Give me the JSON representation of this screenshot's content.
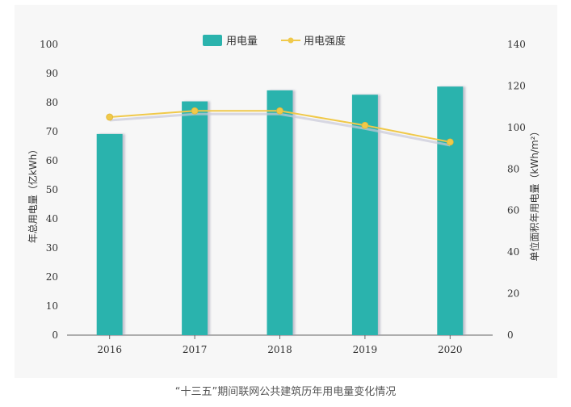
{
  "caption": "“十三五”期间联网公共建筑历年用电量变化情况",
  "colors": {
    "bar": "#2bb3ad",
    "line": "#f0c94a",
    "line_shadow": "#c9c9d9",
    "axis": "#666666"
  },
  "chart_data": {
    "type": "bar+line",
    "categories": [
      "2016",
      "2017",
      "2018",
      "2019",
      "2020"
    ],
    "series": [
      {
        "name": "用电量",
        "type": "bar",
        "axis": "left",
        "values": [
          69.2,
          80.4,
          84.2,
          82.7,
          85.5
        ]
      },
      {
        "name": "用电强度",
        "type": "line",
        "axis": "right",
        "values": [
          105,
          108,
          108,
          101,
          93
        ]
      }
    ],
    "y_left": {
      "label": "年总用电量（亿kWh）",
      "min": 0,
      "max": 100,
      "ticks": [
        0,
        10,
        20,
        30,
        40,
        50,
        60,
        70,
        80,
        90,
        100
      ]
    },
    "y_right": {
      "label": "单位面积年用电量（kWh/m²）",
      "min": 0,
      "max": 140,
      "ticks": [
        0,
        20,
        40,
        60,
        80,
        100,
        120,
        140
      ]
    },
    "legend": "top-center",
    "grid": false
  }
}
